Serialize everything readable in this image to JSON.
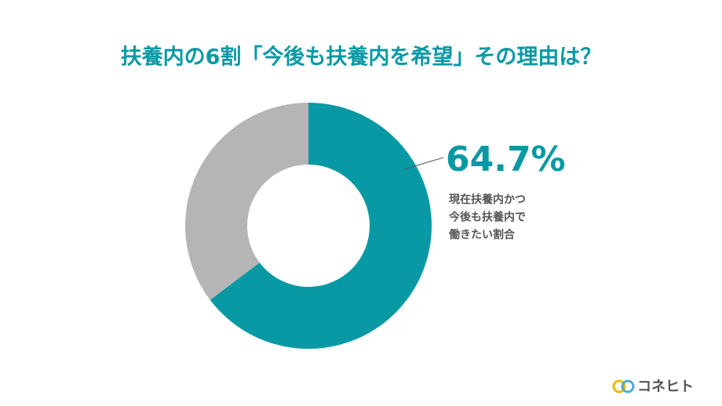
{
  "chart_data": {
    "type": "donut",
    "title": "扶養内の6割「今後も扶養内を希望」その理由は？",
    "categories": [
      "現在扶養内かつ\n今後も扶養内で\n働きたい割合",
      null
    ],
    "values": [
      64.7,
      35.3
    ],
    "value_labels": [
      "64.7%",
      null
    ],
    "colors": [
      "#0899a5",
      "#b5b5b5"
    ],
    "brand": "コネヒト"
  }
}
